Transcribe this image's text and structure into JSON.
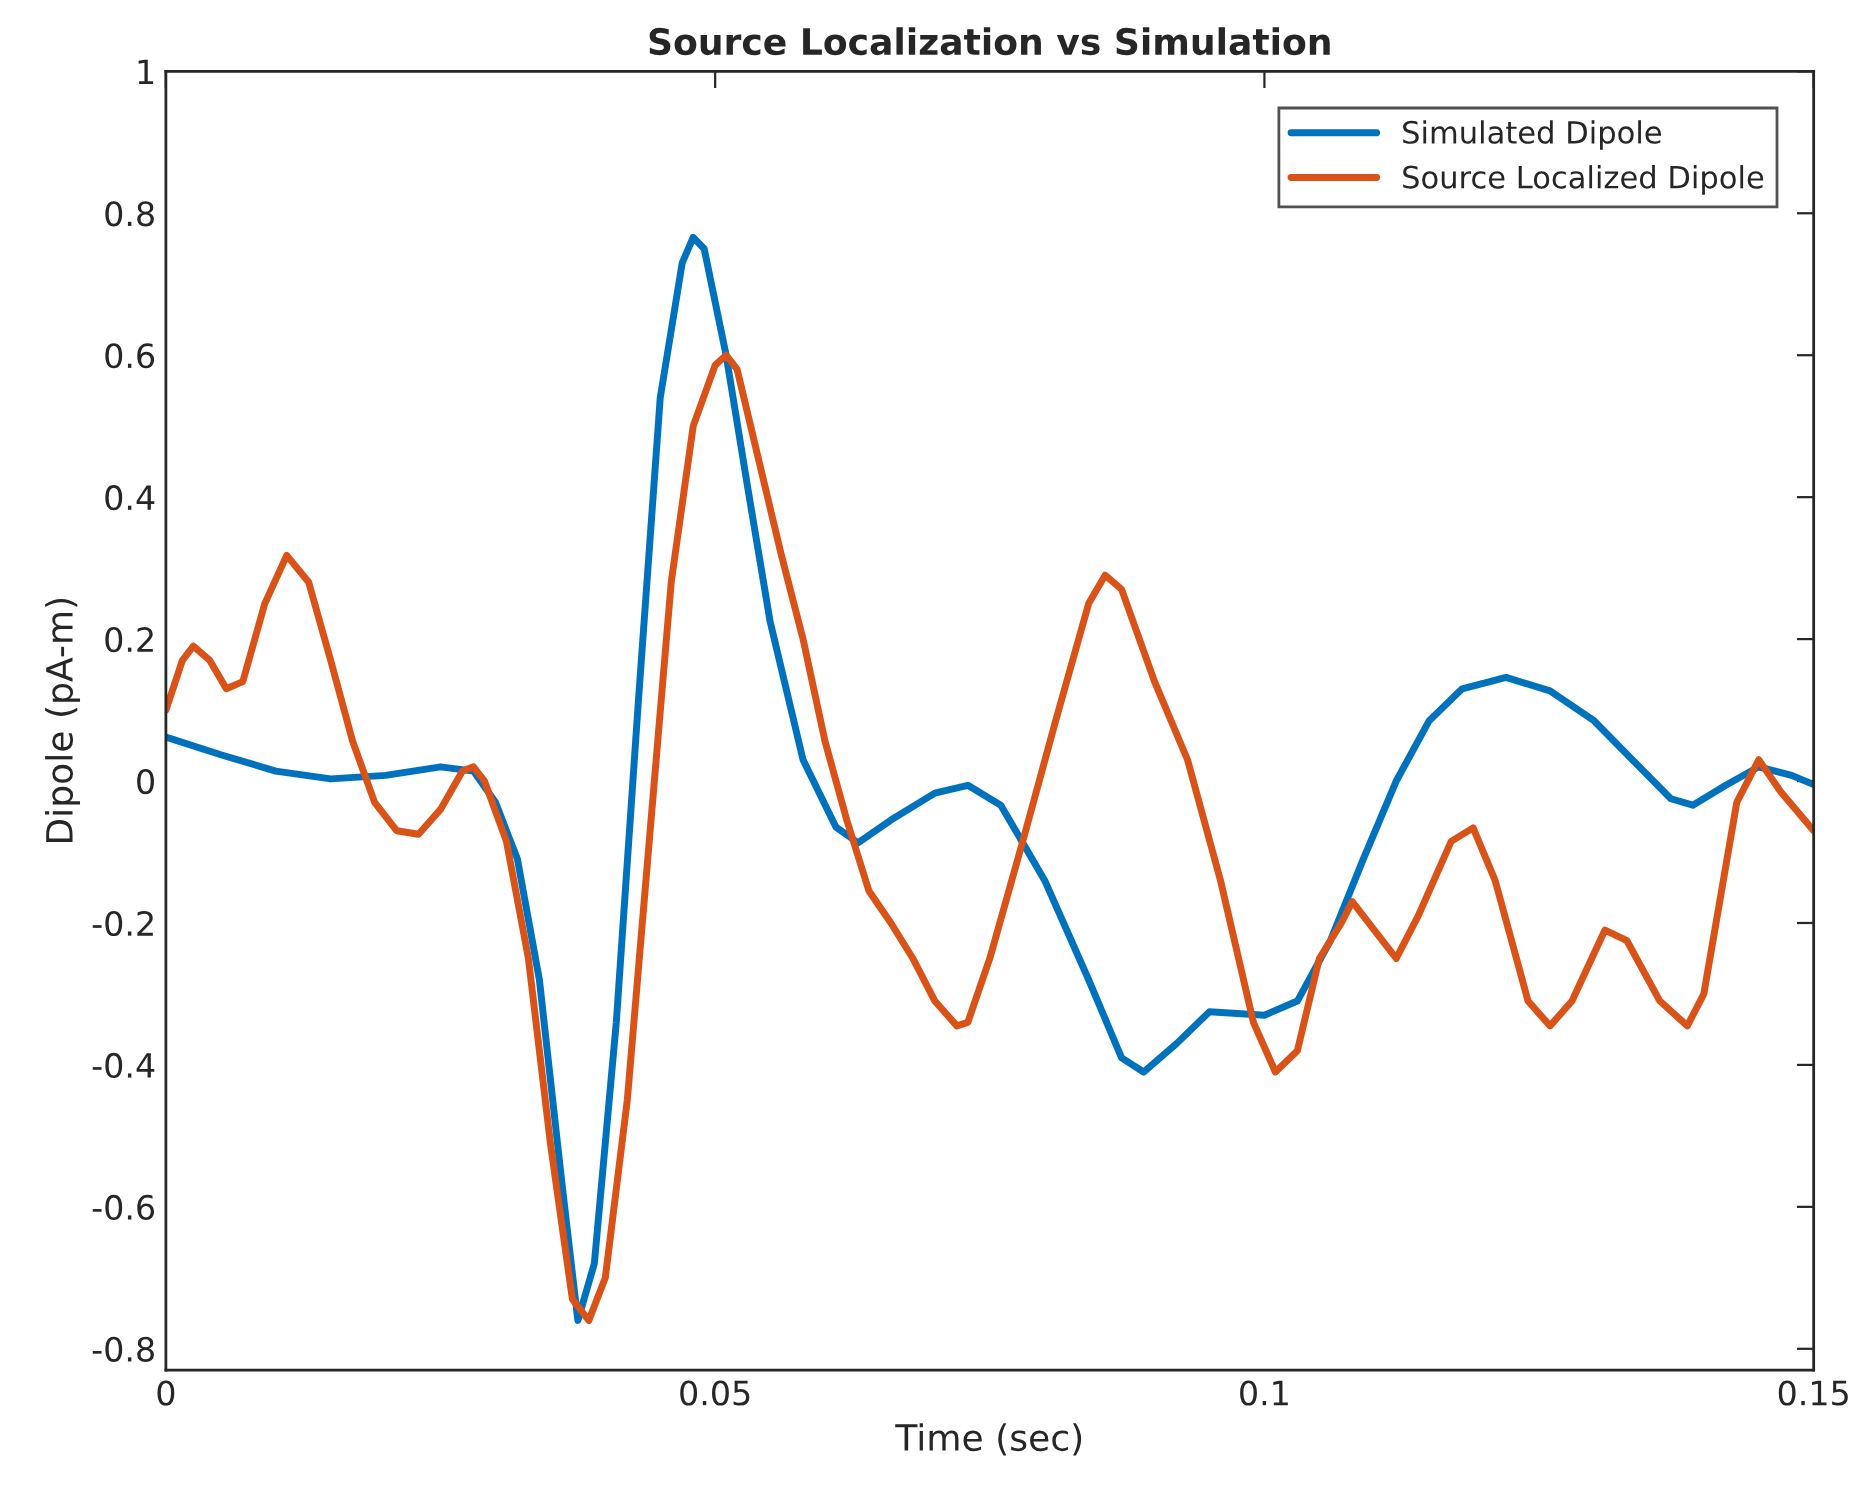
{
  "chart_data": {
    "type": "line",
    "title": "Source Localization vs Simulation",
    "xlabel": "Time (sec)",
    "ylabel": "Dipole (pA-m)",
    "xlim": [
      0,
      0.15
    ],
    "xticks": [
      0,
      0.05,
      0.1,
      0.15
    ],
    "ylim": [
      -0.83,
      1
    ],
    "yticks": [
      -0.8,
      -0.6,
      -0.4,
      -0.2,
      0,
      0.2,
      0.4,
      0.6,
      0.8,
      1
    ],
    "grid": false,
    "legend": "top right",
    "marker": "none",
    "line_style": "solid",
    "series": [
      {
        "name": "Simulated Dipole",
        "color": "#0072bd",
        "x": [
          0,
          0.005,
          0.01,
          0.015,
          0.02,
          0.025,
          0.028,
          0.03,
          0.032,
          0.034,
          0.036,
          0.0375,
          0.039,
          0.041,
          0.043,
          0.045,
          0.047,
          0.048,
          0.049,
          0.051,
          0.053,
          0.055,
          0.058,
          0.061,
          0.063,
          0.066,
          0.07,
          0.073,
          0.076,
          0.08,
          0.084,
          0.087,
          0.089,
          0.092,
          0.095,
          0.1,
          0.103,
          0.106,
          0.109,
          0.112,
          0.115,
          0.118,
          0.122,
          0.126,
          0.13,
          0.134,
          0.137,
          0.139,
          0.142,
          0.145,
          0.148,
          0.15
        ],
        "values": [
          0.062,
          0.037,
          0.014,
          0.003,
          0.008,
          0.02,
          0.014,
          -0.03,
          -0.11,
          -0.28,
          -0.56,
          -0.76,
          -0.68,
          -0.34,
          0.11,
          0.54,
          0.73,
          0.766,
          0.75,
          0.6,
          0.41,
          0.225,
          0.03,
          -0.065,
          -0.087,
          -0.055,
          -0.017,
          -0.006,
          -0.034,
          -0.14,
          -0.28,
          -0.39,
          -0.41,
          -0.37,
          -0.325,
          -0.33,
          -0.31,
          -0.225,
          -0.11,
          0,
          0.085,
          0.13,
          0.146,
          0.127,
          0.085,
          0.022,
          -0.025,
          -0.034,
          -0.006,
          0.02,
          0.008,
          -0.005
        ]
      },
      {
        "name": "Source Localized Dipole",
        "color": "#d95319",
        "x": [
          0,
          0.0015,
          0.0025,
          0.004,
          0.0055,
          0.007,
          0.009,
          0.011,
          0.013,
          0.015,
          0.017,
          0.019,
          0.021,
          0.023,
          0.025,
          0.027,
          0.028,
          0.029,
          0.031,
          0.033,
          0.035,
          0.037,
          0.0385,
          0.04,
          0.042,
          0.044,
          0.046,
          0.048,
          0.05,
          0.051,
          0.052,
          0.054,
          0.056,
          0.058,
          0.06,
          0.062,
          0.064,
          0.066,
          0.068,
          0.07,
          0.072,
          0.073,
          0.075,
          0.078,
          0.081,
          0.084,
          0.0855,
          0.087,
          0.09,
          0.093,
          0.096,
          0.099,
          0.101,
          0.103,
          0.105,
          0.107,
          0.108,
          0.11,
          0.112,
          0.114,
          0.117,
          0.119,
          0.121,
          0.124,
          0.126,
          0.128,
          0.131,
          0.133,
          0.136,
          0.1385,
          0.14,
          0.143,
          0.145,
          0.147,
          0.15
        ],
        "values": [
          0.1,
          0.17,
          0.19,
          0.17,
          0.13,
          0.14,
          0.25,
          0.318,
          0.28,
          0.17,
          0.056,
          -0.03,
          -0.07,
          -0.075,
          -0.04,
          0.014,
          0.02,
          0,
          -0.085,
          -0.25,
          -0.51,
          -0.73,
          -0.76,
          -0.7,
          -0.45,
          -0.085,
          0.28,
          0.5,
          0.586,
          0.6,
          0.58,
          0.45,
          0.32,
          0.2,
          0.056,
          -0.056,
          -0.155,
          -0.2,
          -0.25,
          -0.31,
          -0.345,
          -0.34,
          -0.25,
          -0.085,
          0.085,
          0.25,
          0.29,
          0.27,
          0.14,
          0.03,
          -0.14,
          -0.34,
          -0.41,
          -0.38,
          -0.25,
          -0.2,
          -0.17,
          -0.21,
          -0.25,
          -0.19,
          -0.085,
          -0.066,
          -0.14,
          -0.31,
          -0.345,
          -0.31,
          -0.21,
          -0.225,
          -0.31,
          -0.345,
          -0.3,
          -0.03,
          0.03,
          -0.015,
          -0.07
        ]
      }
    ]
  }
}
